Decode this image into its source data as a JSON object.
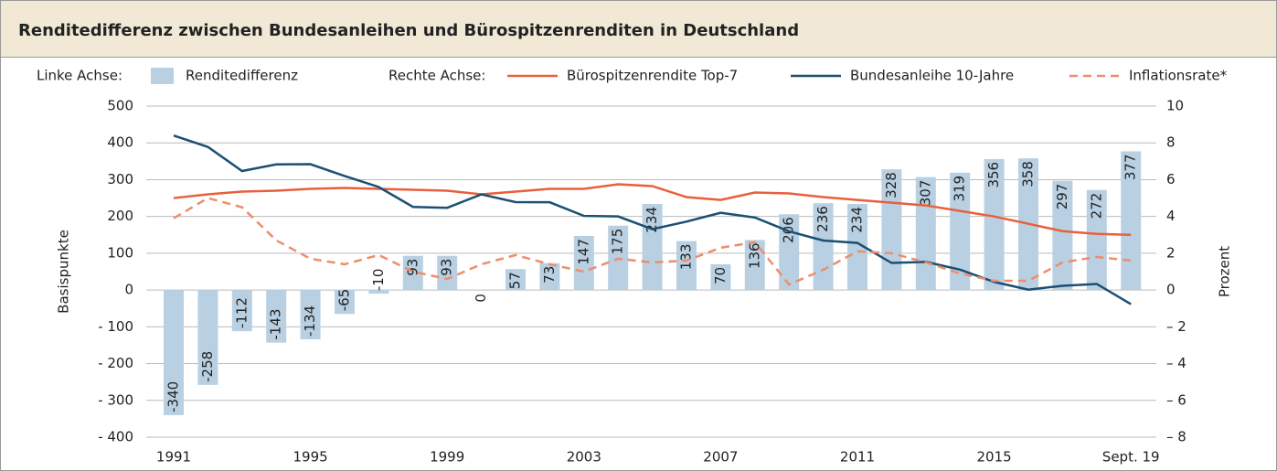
{
  "chart_data": {
    "type": "bar",
    "title": "Renditedifferenz zwischen Bundesanleihen und Bürospitzenrenditen in Deutschland",
    "legend_left_label": "Linke Achse:",
    "legend_right_label": "Rechte Achse:",
    "ylabel": "Basispunkte",
    "y2label": "Prozent",
    "categories": [
      "1991",
      null,
      null,
      null,
      "1995",
      null,
      null,
      null,
      "1999",
      null,
      null,
      null,
      "2003",
      null,
      null,
      null,
      "2007",
      null,
      null,
      null,
      "2011",
      null,
      null,
      null,
      "2015",
      null,
      null,
      null,
      "Sept. 19"
    ],
    "series": [
      {
        "name": "Renditedifferenz",
        "type": "bar",
        "color": "#b9d0e2",
        "axis": "y",
        "values": [
          -340,
          -258,
          -112,
          -143,
          -134,
          -65,
          -10,
          93,
          93,
          0,
          57,
          73,
          147,
          175,
          234,
          133,
          70,
          136,
          206,
          236,
          234,
          328,
          307,
          319,
          356,
          358,
          297,
          272,
          377
        ]
      },
      {
        "name": "Bürospitzenrendite Top-7",
        "type": "line",
        "color": "#e8603c",
        "axis": "y2",
        "values": [
          5.0,
          5.2,
          5.35,
          5.4,
          5.5,
          5.55,
          5.5,
          5.45,
          5.4,
          5.2,
          5.35,
          5.5,
          5.5,
          5.75,
          5.65,
          5.05,
          4.9,
          5.3,
          5.25,
          5.05,
          4.9,
          4.75,
          4.6,
          4.3,
          4.0,
          3.6,
          3.2,
          3.05,
          3.0
        ]
      },
      {
        "name": "Bundesanleihe 10-Jahre",
        "type": "line",
        "color": "#1b4f73",
        "axis": "y2",
        "values": [
          8.4,
          7.78,
          6.47,
          6.83,
          6.84,
          6.2,
          5.6,
          4.52,
          4.47,
          5.2,
          4.78,
          4.77,
          4.03,
          4.0,
          3.31,
          3.72,
          4.2,
          3.94,
          3.19,
          2.69,
          2.56,
          1.47,
          1.53,
          1.11,
          0.44,
          0.02,
          0.23,
          0.33,
          -0.77
        ]
      },
      {
        "name": "Inflationsrate*",
        "type": "line",
        "style": "dashed",
        "color": "#ee8d6c",
        "axis": "y2",
        "values": [
          3.9,
          5.0,
          4.5,
          2.7,
          1.7,
          1.4,
          1.9,
          1.0,
          0.6,
          1.4,
          1.9,
          1.4,
          1.0,
          1.7,
          1.5,
          1.6,
          2.3,
          2.6,
          0.3,
          1.1,
          2.1,
          2.0,
          1.5,
          0.9,
          0.5,
          0.5,
          1.5,
          1.8,
          1.6
        ]
      }
    ],
    "ylim": [
      -400,
      500
    ],
    "yticks": [
      {
        "value": -400,
        "label": "- 400"
      },
      {
        "value": -300,
        "label": "- 300"
      },
      {
        "value": -200,
        "label": "- 200"
      },
      {
        "value": -100,
        "label": "- 100"
      },
      0,
      100,
      200,
      300,
      400,
      500
    ],
    "y2lim": [
      -8,
      10
    ],
    "y2ticks": [
      {
        "value": -8,
        "label": "– 8"
      },
      {
        "value": -6,
        "label": "– 6"
      },
      {
        "value": -4,
        "label": "– 4"
      },
      {
        "value": -2,
        "label": "– 2"
      },
      0,
      2,
      4,
      6,
      8,
      10
    ],
    "grid": true
  }
}
